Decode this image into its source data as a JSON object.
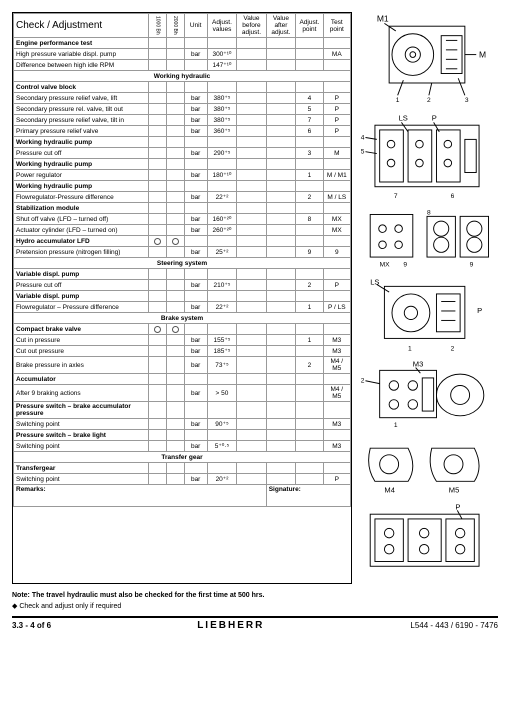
{
  "title": "Check / Adjustment",
  "headers": {
    "cb1": "1000 Bh",
    "cb2": "2000 Bh",
    "unit": "Unit",
    "adjval": "Adjust. values",
    "before": "Value before adjust.",
    "after": "Value after adjust.",
    "ap": "Adjust. point",
    "tp": "Test point"
  },
  "sections": [
    {
      "rows": [
        {
          "desc": "Engine performance test",
          "bold": true
        },
        {
          "desc": "High pressure variable displ. pump",
          "unit": "bar",
          "val": "300⁺¹⁰",
          "tp": "MA"
        },
        {
          "desc": "Difference between high idle RPM",
          "val": "147⁺¹⁰"
        }
      ]
    },
    {
      "header": "Working hydraulic",
      "rows": [
        {
          "desc": "Control valve block",
          "bold": true
        },
        {
          "desc": "Secondary pressure relief valve, lift",
          "unit": "bar",
          "val": "380⁺⁵",
          "ap": "4",
          "tp": "P"
        },
        {
          "desc": "Secondary pressure rel. valve, tilt out",
          "unit": "bar",
          "val": "380⁺⁵",
          "ap": "5",
          "tp": "P"
        },
        {
          "desc": "Secondary pressure relief valve, tilt in",
          "unit": "bar",
          "val": "380⁺⁵",
          "ap": "7",
          "tp": "P"
        },
        {
          "desc": "Primary pressure relief valve",
          "unit": "bar",
          "val": "360⁺⁵",
          "ap": "6",
          "tp": "P"
        },
        {
          "desc": "Working hydraulic pump",
          "bold": true
        },
        {
          "desc": "Pressure cut off",
          "unit": "bar",
          "val": "290⁺⁵",
          "ap": "3",
          "tp": "M"
        },
        {
          "desc": "Working hydraulic pump",
          "bold": true
        },
        {
          "desc": "Power regulator",
          "unit": "bar",
          "val": "180⁺¹⁰",
          "ap": "1",
          "tp": "M / M1"
        },
        {
          "desc": "Working hydraulic pump",
          "bold": true
        },
        {
          "desc": "Flowregulator-Pressure difference",
          "unit": "bar",
          "val": "22⁺²",
          "ap": "2",
          "tp": "M / LS"
        },
        {
          "desc": "Stabilization module",
          "bold": true
        },
        {
          "desc": "Shut off valve (LFD – turned off)",
          "unit": "bar",
          "val": "160⁺²⁰",
          "ap": "8",
          "tp": "MX"
        },
        {
          "desc": "Actuator cylinder (LFD – turned on)",
          "unit": "bar",
          "val": "260⁺²⁰",
          "tp": "MX"
        }
      ]
    },
    {
      "rows": [
        {
          "desc": "Hydro accumulator LFD",
          "bold": true,
          "cb": true
        },
        {
          "desc": "Pretension pressure (nitrogen filling)",
          "unit": "bar",
          "val": "25⁺²",
          "ap": "9",
          "tp": "9"
        }
      ]
    },
    {
      "header": "Steering system",
      "rows": [
        {
          "desc": "Variable displ. pump",
          "bold": true
        },
        {
          "desc": "Pressure cut off",
          "unit": "bar",
          "val": "210⁺⁵",
          "ap": "2",
          "tp": "P"
        },
        {
          "desc": "Variable displ. pump",
          "bold": true
        },
        {
          "desc": "Flowregulator – Pressure difference",
          "unit": "bar",
          "val": "22⁺²",
          "ap": "1",
          "tp": "P / LS"
        }
      ]
    },
    {
      "header": "Brake system",
      "rows": [
        {
          "desc": "Compact brake valve",
          "bold": true,
          "cb": true
        },
        {
          "desc": "Cut in pressure",
          "unit": "bar",
          "val": "155⁺⁵",
          "ap": "1",
          "tp": "M3"
        },
        {
          "desc": "Cut out pressure",
          "unit": "bar",
          "val": "185⁺⁵",
          "tp": "M3"
        },
        {
          "desc": "Brake pressure in axles",
          "unit": "bar",
          "val": "73⁺⁵",
          "ap": "2",
          "tp": "M4 / M5"
        },
        {
          "desc": "Accumulator",
          "bold": true
        },
        {
          "desc": "After 9 braking actions",
          "unit": "bar",
          "val": "> 50",
          "tp": "M4 / M5"
        },
        {
          "desc": "Pressure switch – brake accumulator pressure",
          "bold": true
        },
        {
          "desc": "Switching point",
          "unit": "bar",
          "val": "90⁺⁵",
          "tp": "M3"
        },
        {
          "desc": "Pressure switch – brake light",
          "bold": true
        },
        {
          "desc": "Switching point",
          "unit": "bar",
          "val": "5⁺⁰·⁵",
          "tp": "M3"
        }
      ]
    },
    {
      "header": "Transfer gear",
      "rows": [
        {
          "desc": "Transfergear",
          "bold": true
        },
        {
          "desc": "Switching point",
          "unit": "bar",
          "val": "20⁺²",
          "tp": "P"
        }
      ]
    }
  ],
  "remarks": "Remarks:",
  "signature": "Signature:",
  "note": "Note: The travel hydraulic must also be checked for the first time at 500 hrs.",
  "bullet": "◆   Check and adjust only if required",
  "page": "3.3 - 4 of 6",
  "brand": "LIEBHERR",
  "docnum": "L544 - 443 / 6190 - 7476",
  "diag_labels": {
    "m1": "M1",
    "m": "M",
    "ls": "LS",
    "mx": "MX",
    "p": "P",
    "m3": "M3",
    "m4": "M4",
    "m5": "M5"
  }
}
